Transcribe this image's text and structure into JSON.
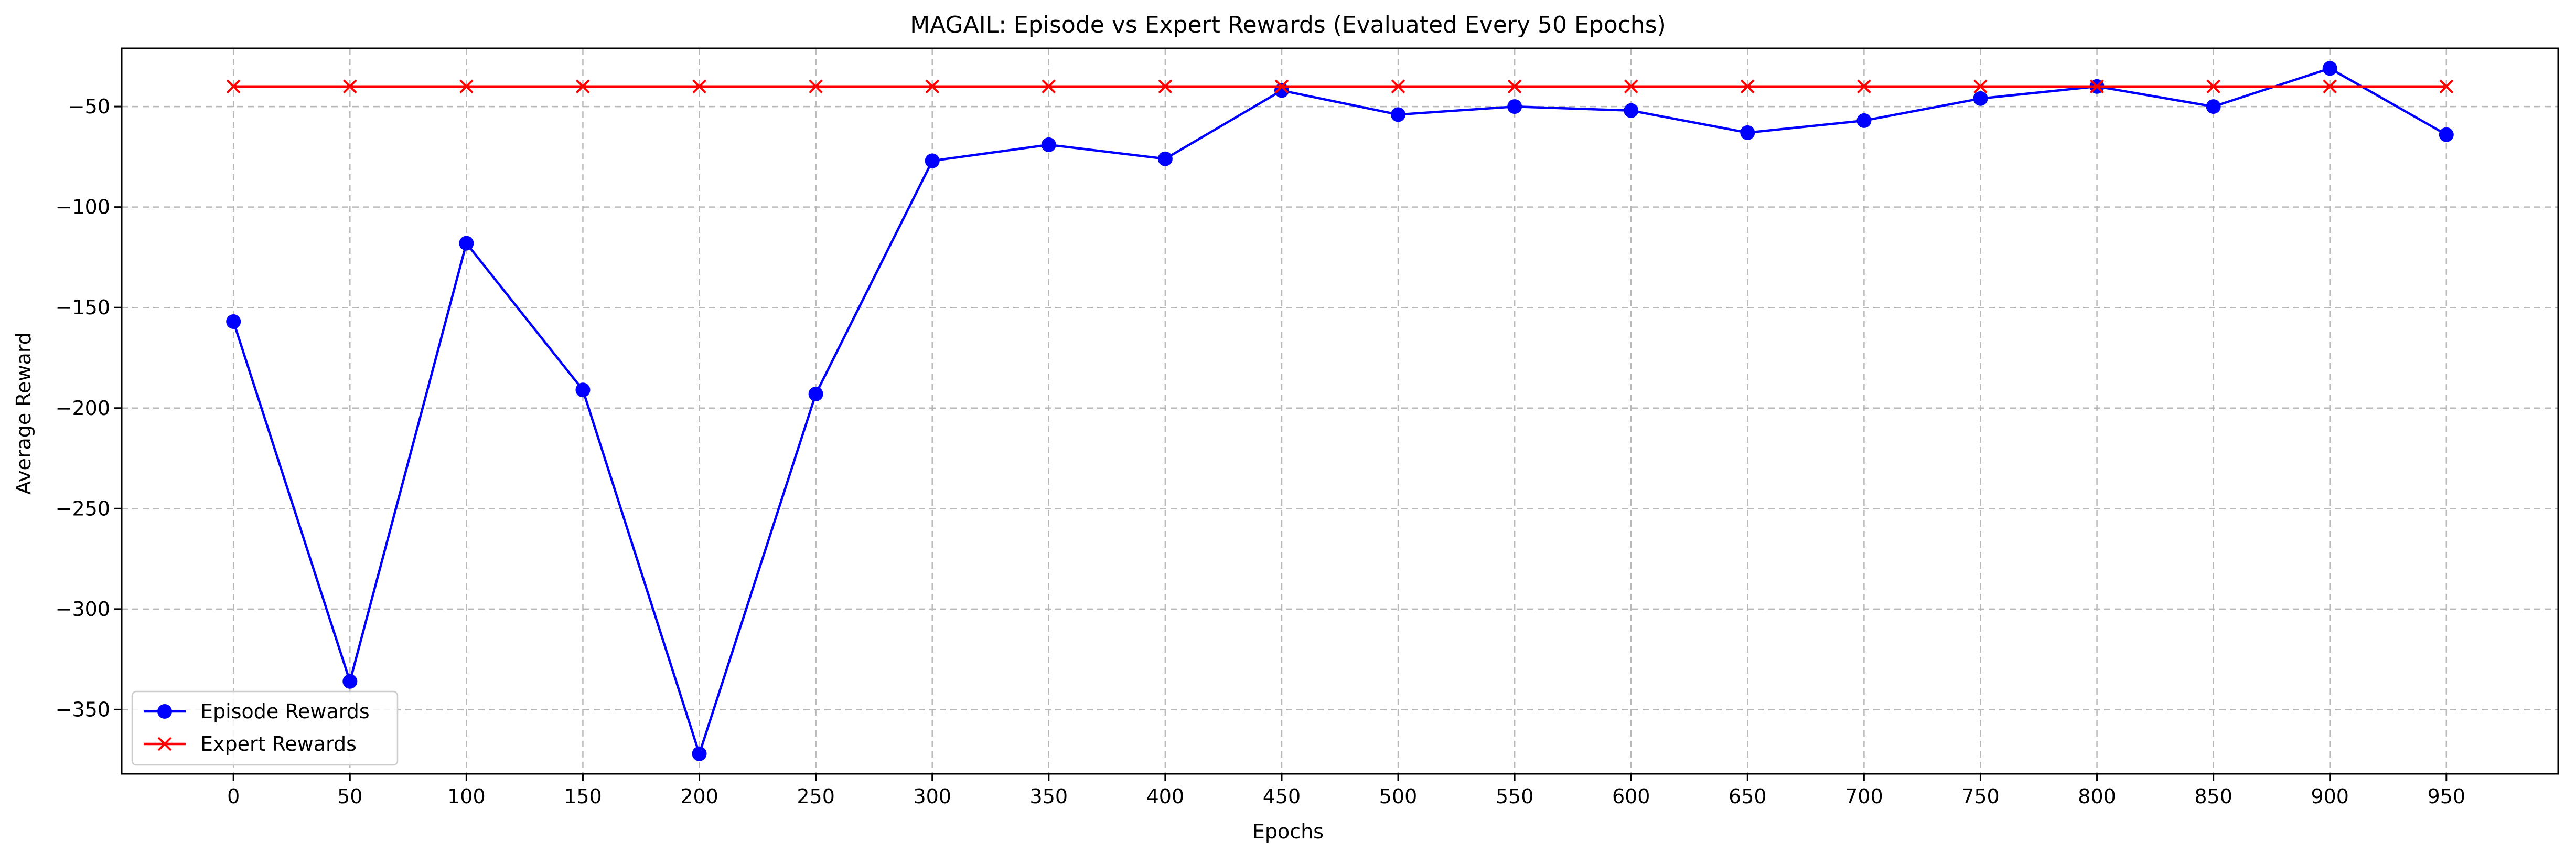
{
  "chart_data": {
    "type": "line",
    "title": "MAGAIL: Episode vs Expert Rewards (Evaluated Every 50 Epochs)",
    "xlabel": "Epochs",
    "ylabel": "Average Reward",
    "x": [
      0,
      50,
      100,
      150,
      200,
      250,
      300,
      350,
      400,
      450,
      500,
      550,
      600,
      650,
      700,
      750,
      800,
      850,
      900,
      950
    ],
    "xticks": [
      "0",
      "50",
      "100",
      "150",
      "200",
      "250",
      "300",
      "350",
      "400",
      "450",
      "500",
      "550",
      "600",
      "650",
      "700",
      "750",
      "800",
      "850",
      "900",
      "950"
    ],
    "yticks": [
      -50,
      -100,
      -150,
      -200,
      -250,
      -300,
      -350
    ],
    "ytick_labels": [
      "−50",
      "−100",
      "−150",
      "−200",
      "−250",
      "−300",
      "−350"
    ],
    "xlim": [
      -48,
      998
    ],
    "ylim": [
      -382,
      -21
    ],
    "grid": true,
    "legend_position": "lower-left",
    "series": [
      {
        "name": "Episode Rewards",
        "color": "#0000ff",
        "marker": "circle",
        "values": [
          -157,
          -336,
          -118,
          -191,
          -372,
          -193,
          -77,
          -69,
          -76,
          -42,
          -54,
          -50,
          -52,
          -63,
          -57,
          -46,
          -40,
          -50,
          -31,
          -64
        ]
      },
      {
        "name": "Expert Rewards",
        "color": "#ff0000",
        "marker": "x",
        "values": [
          -40,
          -40,
          -40,
          -40,
          -40,
          -40,
          -40,
          -40,
          -40,
          -40,
          -40,
          -40,
          -40,
          -40,
          -40,
          -40,
          -40,
          -40,
          -40,
          -40
        ]
      }
    ]
  }
}
